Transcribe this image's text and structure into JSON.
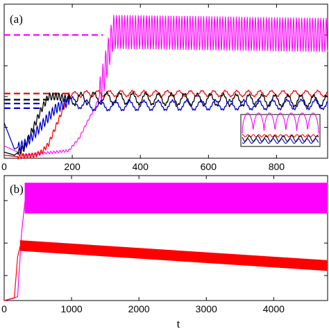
{
  "chart_data": [
    {
      "panel": "(a)",
      "type": "line",
      "xlim": [
        0,
        950
      ],
      "ylim": [
        0,
        10
      ],
      "x_ticks": [
        0,
        200,
        400,
        600,
        800
      ],
      "x_tick_labels": [
        "0",
        "200",
        "400",
        "600",
        "800"
      ],
      "y_ticks": [
        2,
        4,
        6,
        8
      ],
      "series": [
        {
          "color": "#ff00ff",
          "x": [
            0,
            60,
            100,
            150,
            190,
            220,
            245,
            265,
            280,
            320,
            950
          ],
          "y": [
            0.8,
            0.2,
            0.3,
            0.4,
            0.5,
            1.3,
            2.4,
            3.2,
            4.0,
            8.2,
            8.0
          ],
          "oscillation": 1.1
        },
        {
          "color": "#ff0000",
          "x": [
            0,
            40,
            90,
            110,
            130,
            160,
            190,
            250,
            950
          ],
          "y": [
            0.2,
            0.1,
            0.2,
            0.4,
            0.9,
            2.5,
            4.1,
            4.2,
            4.2
          ],
          "oscillation": 0.3
        },
        {
          "color": "#000000",
          "x": [
            0,
            30,
            60,
            90,
            110,
            130,
            160,
            190,
            250,
            950
          ],
          "y": [
            0.4,
            0.2,
            0.7,
            2.2,
            3.2,
            4.0,
            4.0,
            3.8,
            3.9,
            3.7
          ],
          "oscillation": 0.6
        },
        {
          "color": "#0000cc",
          "x": [
            0,
            30,
            60,
            90,
            120,
            150,
            190,
            250,
            950
          ],
          "y": [
            2.3,
            0.6,
            0.9,
            1.6,
            2.4,
            3.2,
            3.7,
            3.4,
            3.5
          ],
          "oscillation": 0.5
        }
      ],
      "dashed_levels": [
        {
          "color": "#ff00ff",
          "value": 8.0,
          "x_end": 290
        },
        {
          "color": "#ff0000",
          "value": 4.2,
          "x_end": 190
        },
        {
          "color": "#000000",
          "value": 3.8,
          "x_end": 130
        },
        {
          "color": "#0000cc",
          "value": 3.55,
          "x_end": 110
        },
        {
          "color": "#0000cc",
          "value": 3.25,
          "x_end": 110
        }
      ],
      "inset": {
        "series": [
          {
            "color": "#ff00ff",
            "level": 0.75,
            "amp": 0.35,
            "cycles": 7
          },
          {
            "color": "#ff0000",
            "level": 0.32,
            "amp": 0.04,
            "cycles": 14
          },
          {
            "color": "#000000",
            "level": 0.22,
            "amp": 0.1,
            "cycles": 9
          },
          {
            "color": "#0000cc",
            "level": 0.14,
            "amp": 0.08,
            "cycles": 9
          }
        ]
      }
    },
    {
      "panel": "(b)",
      "type": "line",
      "xlabel": "t",
      "xlim": [
        0,
        4800
      ],
      "ylim": [
        0,
        10
      ],
      "x_ticks": [
        0,
        1000,
        2000,
        3000,
        4000
      ],
      "x_tick_labels": [
        "0",
        "1000",
        "2000",
        "3000",
        "4000"
      ],
      "y_ticks": [
        2,
        4.6,
        8
      ],
      "series": [
        {
          "color": "#ff00ff",
          "band": [
            7.0,
            9.4
          ],
          "x_start": 310,
          "rise": [
            [
              0,
              0
            ],
            [
              200,
              0.3
            ],
            [
              260,
              5.5
            ],
            [
              310,
              8.0
            ]
          ]
        },
        {
          "color": "#ff0000",
          "band_start": [
            4.0,
            4.8
          ],
          "band_end": [
            2.4,
            3.2
          ],
          "x_start": 240,
          "rise": [
            [
              0,
              0
            ],
            [
              150,
              0.2
            ],
            [
              200,
              3.5
            ],
            [
              240,
              4.4
            ]
          ]
        }
      ]
    }
  ]
}
